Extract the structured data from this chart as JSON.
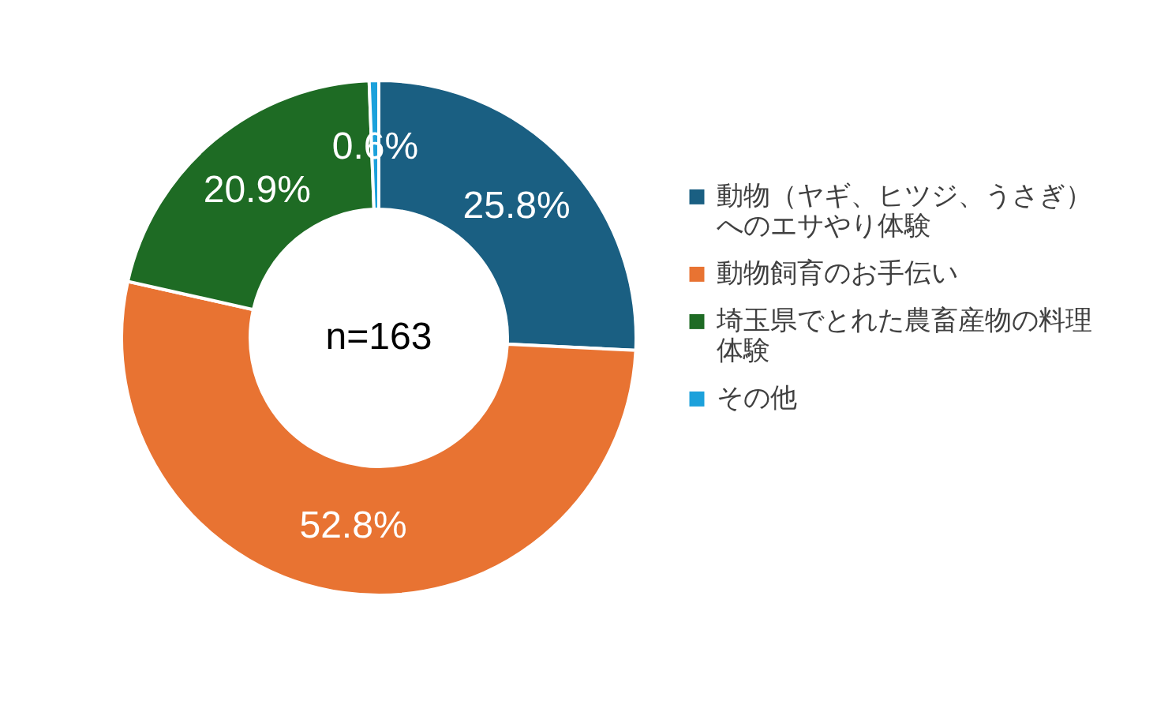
{
  "chart_data": {
    "type": "donut",
    "categories": [
      "動物（ヤギ、ヒツジ、うさぎ）へのエサやり体験",
      "動物飼育のお手伝い",
      "埼玉県でとれた農畜産物の料理体験",
      "その他"
    ],
    "values": [
      25.8,
      52.8,
      20.9,
      0.6
    ],
    "colors": [
      "#1a5f82",
      "#e87332",
      "#1e6b24",
      "#1ca1db"
    ],
    "value_labels": [
      "25.8%",
      "52.8%",
      "20.9%",
      "0.6%"
    ],
    "annotations": [
      "n=163"
    ],
    "legend": "right"
  }
}
